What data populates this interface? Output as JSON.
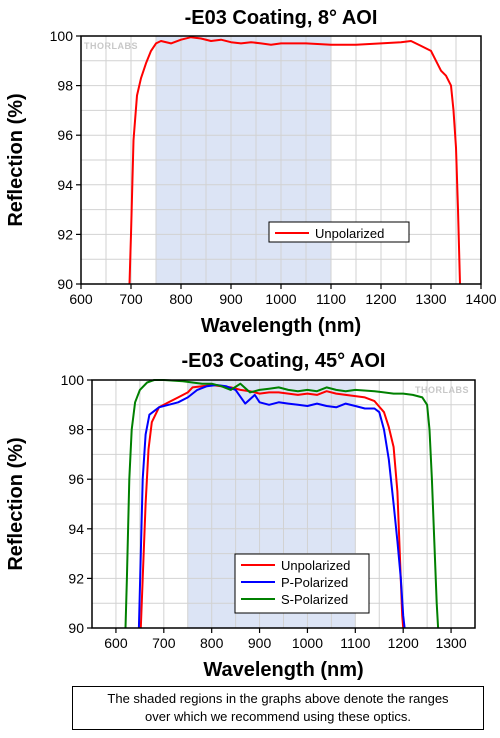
{
  "chart_data": [
    {
      "type": "line",
      "title": "-E03 Coating, 8° AOI",
      "xlabel": "Wavelength (nm)",
      "ylabel": "Reflection (%)",
      "xlim": [
        600,
        1400
      ],
      "ylim": [
        90,
        100
      ],
      "xticks": [
        600,
        700,
        800,
        900,
        1000,
        1100,
        1200,
        1300,
        1400
      ],
      "yticks": [
        90,
        92,
        94,
        96,
        98,
        100
      ],
      "grid": true,
      "watermark": "THORLABS",
      "shaded_range": [
        750,
        1100
      ],
      "legend": "center-right",
      "series": [
        {
          "name": "Unpolarized",
          "color": "#ff0000",
          "points": [
            [
              697,
              90
            ],
            [
              700,
              92
            ],
            [
              705,
              95.8
            ],
            [
              712,
              97.6
            ],
            [
              720,
              98.3
            ],
            [
              730,
              98.9
            ],
            [
              740,
              99.4
            ],
            [
              750,
              99.7
            ],
            [
              760,
              99.8
            ],
            [
              780,
              99.7
            ],
            [
              800,
              99.85
            ],
            [
              820,
              99.95
            ],
            [
              840,
              99.9
            ],
            [
              860,
              99.8
            ],
            [
              880,
              99.85
            ],
            [
              900,
              99.75
            ],
            [
              920,
              99.7
            ],
            [
              940,
              99.75
            ],
            [
              960,
              99.7
            ],
            [
              980,
              99.65
            ],
            [
              1000,
              99.7
            ],
            [
              1050,
              99.7
            ],
            [
              1100,
              99.65
            ],
            [
              1150,
              99.65
            ],
            [
              1200,
              99.7
            ],
            [
              1240,
              99.75
            ],
            [
              1260,
              99.8
            ],
            [
              1280,
              99.6
            ],
            [
              1300,
              99.4
            ],
            [
              1310,
              99.0
            ],
            [
              1320,
              98.6
            ],
            [
              1330,
              98.4
            ],
            [
              1340,
              98.0
            ],
            [
              1345,
              97.0
            ],
            [
              1350,
              95.5
            ],
            [
              1354,
              93.0
            ],
            [
              1358,
              90
            ]
          ]
        }
      ]
    },
    {
      "type": "line",
      "title": "-E03 Coating, 45° AOI",
      "xlabel": "Wavelength (nm)",
      "ylabel": "Reflection (%)",
      "xlim": [
        550,
        1350
      ],
      "ylim": [
        90,
        100
      ],
      "xticks": [
        600,
        700,
        800,
        900,
        1000,
        1100,
        1200,
        1300
      ],
      "yticks": [
        90,
        92,
        94,
        96,
        98,
        100
      ],
      "grid": true,
      "watermark": "THORLABS",
      "shaded_range": [
        750,
        1100
      ],
      "legend": "bottom-right",
      "series": [
        {
          "name": "Unpolarized",
          "color": "#ff0000",
          "points": [
            [
              652,
              90
            ],
            [
              656,
              92
            ],
            [
              662,
              95
            ],
            [
              668,
              97.2
            ],
            [
              675,
              98.3
            ],
            [
              690,
              98.9
            ],
            [
              710,
              99.1
            ],
            [
              730,
              99.3
            ],
            [
              750,
              99.5
            ],
            [
              760,
              99.7
            ],
            [
              780,
              99.75
            ],
            [
              800,
              99.8
            ],
            [
              820,
              99.75
            ],
            [
              840,
              99.7
            ],
            [
              860,
              99.6
            ],
            [
              880,
              99.55
            ],
            [
              900,
              99.45
            ],
            [
              920,
              99.5
            ],
            [
              940,
              99.5
            ],
            [
              960,
              99.45
            ],
            [
              980,
              99.4
            ],
            [
              1000,
              99.45
            ],
            [
              1020,
              99.4
            ],
            [
              1040,
              99.55
            ],
            [
              1060,
              99.45
            ],
            [
              1080,
              99.4
            ],
            [
              1100,
              99.35
            ],
            [
              1120,
              99.3
            ],
            [
              1140,
              99.15
            ],
            [
              1160,
              98.7
            ],
            [
              1170,
              98.1
            ],
            [
              1180,
              97.3
            ],
            [
              1188,
              95.5
            ],
            [
              1193,
              93
            ],
            [
              1198,
              90.5
            ],
            [
              1200,
              90
            ]
          ]
        },
        {
          "name": "P-Polarized",
          "color": "#0000ff",
          "points": [
            [
              648,
              90
            ],
            [
              652,
              93
            ],
            [
              656,
              96
            ],
            [
              662,
              97.8
            ],
            [
              670,
              98.6
            ],
            [
              690,
              98.9
            ],
            [
              710,
              99.0
            ],
            [
              730,
              99.1
            ],
            [
              750,
              99.3
            ],
            [
              770,
              99.6
            ],
            [
              790,
              99.75
            ],
            [
              810,
              99.8
            ],
            [
              830,
              99.75
            ],
            [
              850,
              99.6
            ],
            [
              870,
              99.05
            ],
            [
              890,
              99.4
            ],
            [
              900,
              99.1
            ],
            [
              920,
              99.0
            ],
            [
              940,
              99.1
            ],
            [
              960,
              99.05
            ],
            [
              980,
              99.0
            ],
            [
              1000,
              98.95
            ],
            [
              1020,
              99.05
            ],
            [
              1040,
              98.95
            ],
            [
              1060,
              98.9
            ],
            [
              1080,
              99.05
            ],
            [
              1100,
              98.95
            ],
            [
              1120,
              98.85
            ],
            [
              1140,
              98.85
            ],
            [
              1150,
              98.7
            ],
            [
              1160,
              98.0
            ],
            [
              1170,
              96.8
            ],
            [
              1180,
              95.0
            ],
            [
              1188,
              93.5
            ],
            [
              1195,
              92.0
            ],
            [
              1200,
              90.5
            ],
            [
              1203,
              90
            ]
          ]
        },
        {
          "name": "S-Polarized",
          "color": "#008000",
          "points": [
            [
              620,
              90
            ],
            [
              623,
              92
            ],
            [
              628,
              96
            ],
            [
              633,
              98.0
            ],
            [
              640,
              99.1
            ],
            [
              650,
              99.6
            ],
            [
              665,
              99.9
            ],
            [
              680,
              100
            ],
            [
              700,
              100
            ],
            [
              740,
              99.95
            ],
            [
              760,
              99.9
            ],
            [
              780,
              99.85
            ],
            [
              800,
              99.85
            ],
            [
              820,
              99.75
            ],
            [
              840,
              99.6
            ],
            [
              860,
              99.85
            ],
            [
              880,
              99.5
            ],
            [
              900,
              99.6
            ],
            [
              920,
              99.65
            ],
            [
              940,
              99.7
            ],
            [
              960,
              99.6
            ],
            [
              980,
              99.55
            ],
            [
              1000,
              99.6
            ],
            [
              1020,
              99.55
            ],
            [
              1040,
              99.7
            ],
            [
              1060,
              99.6
            ],
            [
              1080,
              99.55
            ],
            [
              1100,
              99.6
            ],
            [
              1140,
              99.55
            ],
            [
              1180,
              99.45
            ],
            [
              1200,
              99.45
            ],
            [
              1220,
              99.4
            ],
            [
              1240,
              99.3
            ],
            [
              1250,
              99.0
            ],
            [
              1255,
              98.0
            ],
            [
              1260,
              96.0
            ],
            [
              1265,
              93.5
            ],
            [
              1270,
              91.0
            ],
            [
              1273,
              90
            ]
          ]
        }
      ]
    }
  ],
  "note": {
    "line1": "The shaded regions in the graphs above denote the ranges",
    "line2": "over which we recommend using these optics."
  }
}
